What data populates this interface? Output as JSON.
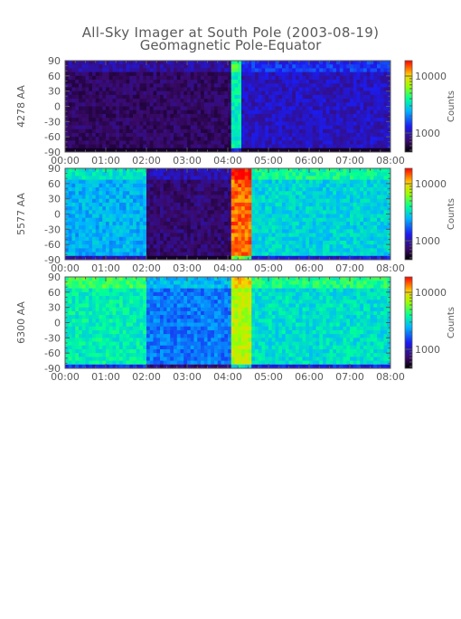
{
  "chart": {
    "title": "All-Sky Imager at South Pole (2003-08-19)",
    "subtitle": "Geomagnetic Pole-Equator"
  },
  "chart_data": [
    {
      "type": "heatmap",
      "ylabel": "4278 AA",
      "colorbar_label": "Counts",
      "colorbar_ticks": [
        "10000",
        "1000"
      ],
      "colorbar_scale": "log",
      "x_ticks": [
        "00:00",
        "01:00",
        "02:00",
        "03:00",
        "04:00",
        "05:00",
        "06:00",
        "07:00",
        "08:00"
      ],
      "y_ticks": [
        "90",
        "60",
        "30",
        "0",
        "-30",
        "-60",
        "-90"
      ],
      "xlim": [
        "00:00",
        "08:00"
      ],
      "ylim": [
        -90,
        90
      ],
      "base_level": 0.1,
      "events": [
        {
          "t0": 4.05,
          "t1": 4.35,
          "level": 0.55
        },
        {
          "t0": 4.35,
          "t1": 8.0,
          "level": 0.22
        }
      ]
    },
    {
      "type": "heatmap",
      "ylabel": "5577 AA",
      "colorbar_label": "Counts",
      "colorbar_ticks": [
        "10000",
        "1000"
      ],
      "colorbar_scale": "log",
      "x_ticks": [
        "00:00",
        "01:00",
        "02:00",
        "03:00",
        "04:00",
        "05:00",
        "06:00",
        "07:00",
        "08:00"
      ],
      "y_ticks": [
        "90",
        "60",
        "30",
        "0",
        "-30",
        "-60",
        "-90"
      ],
      "xlim": [
        "00:00",
        "08:00"
      ],
      "ylim": [
        -90,
        90
      ],
      "base_level": 0.12,
      "events": [
        {
          "t0": 0.0,
          "t1": 2.0,
          "level": 0.45
        },
        {
          "t0": 4.05,
          "t1": 4.6,
          "level": 0.92
        },
        {
          "t0": 4.6,
          "t1": 8.0,
          "level": 0.5
        }
      ]
    },
    {
      "type": "heatmap",
      "ylabel": "6300 AA",
      "colorbar_label": "Counts",
      "colorbar_ticks": [
        "10000",
        "1000"
      ],
      "colorbar_scale": "log",
      "x_ticks": [
        "00:00",
        "01:00",
        "02:00",
        "03:00",
        "04:00",
        "05:00",
        "06:00",
        "07:00",
        "08:00"
      ],
      "y_ticks": [
        "90",
        "60",
        "30",
        "0",
        "-30",
        "-60",
        "-90"
      ],
      "xlim": [
        "00:00",
        "08:00"
      ],
      "ylim": [
        -90,
        90
      ],
      "base_level": 0.38,
      "events": [
        {
          "t0": 0.0,
          "t1": 2.0,
          "level": 0.55
        },
        {
          "t0": 4.05,
          "t1": 4.6,
          "level": 0.75
        },
        {
          "t0": 4.6,
          "t1": 8.0,
          "level": 0.52
        }
      ]
    }
  ]
}
